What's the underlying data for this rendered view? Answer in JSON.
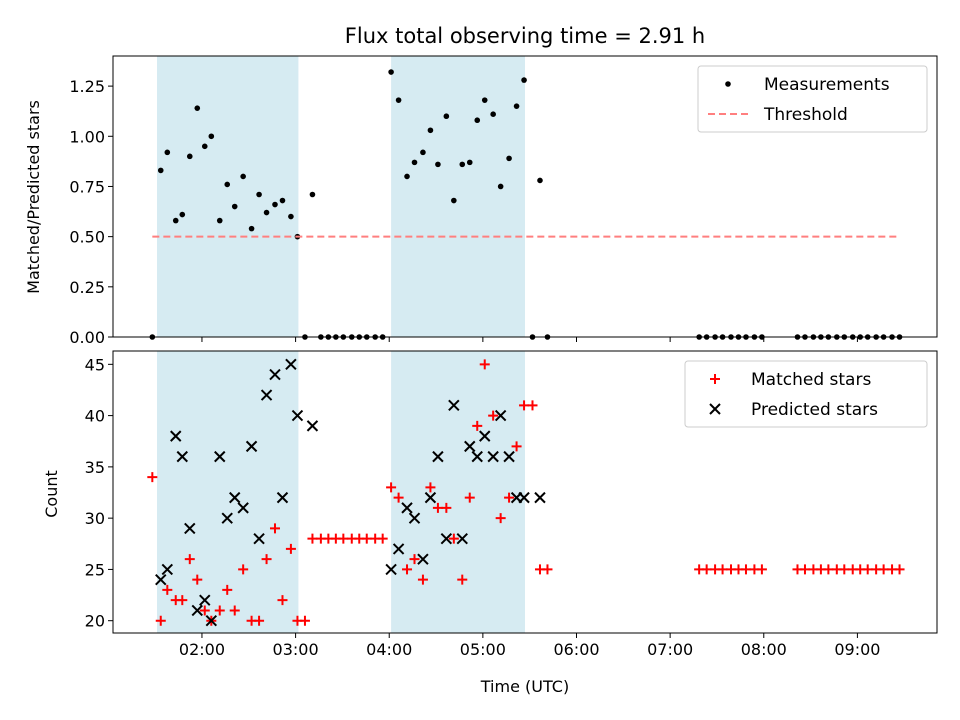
{
  "colors": {
    "shade": "#add8e6",
    "measurement": "#000000",
    "threshold": "#ff7f7f",
    "matched": "#ff0000",
    "predicted": "#000000"
  },
  "chart_data": [
    {
      "type": "scatter",
      "title": "Flux total observing time = 2.91 h",
      "xlabel": "",
      "ylabel": "Matched/Predicted stars",
      "x_ticks": [
        "02:00",
        "03:00",
        "04:00",
        "05:00",
        "06:00",
        "07:00",
        "08:00",
        "09:00"
      ],
      "x_tick_values": [
        2,
        3,
        4,
        5,
        6,
        7,
        8,
        9
      ],
      "xlim": [
        1.05,
        9.85
      ],
      "ylim": [
        0,
        1.4
      ],
      "y_ticks": [
        0.0,
        0.25,
        0.5,
        0.75,
        1.0,
        1.25
      ],
      "y_tick_labels": [
        "0.00",
        "0.25",
        "0.50",
        "0.75",
        "1.00",
        "1.25"
      ],
      "shaded_intervals": [
        [
          1.52,
          3.03
        ],
        [
          4.02,
          5.45
        ]
      ],
      "legend_position": "upper right",
      "series": [
        {
          "name": "Measurements",
          "marker": "dot",
          "x": [
            1.47,
            1.56,
            1.63,
            1.72,
            1.79,
            1.87,
            1.95,
            2.03,
            2.1,
            2.19,
            2.27,
            2.35,
            2.44,
            2.53,
            2.61,
            2.69,
            2.78,
            2.86,
            2.95,
            3.02,
            3.1,
            3.18,
            3.27,
            3.35,
            3.43,
            3.51,
            3.6,
            3.68,
            3.76,
            3.85,
            3.93,
            4.02,
            4.1,
            4.19,
            4.27,
            4.36,
            4.44,
            4.52,
            4.61,
            4.69,
            4.78,
            4.86,
            4.94,
            5.02,
            5.11,
            5.19,
            5.28,
            5.36,
            5.44,
            5.53,
            5.61,
            5.69,
            7.31,
            7.39,
            7.48,
            7.56,
            7.65,
            7.73,
            7.81,
            7.9,
            7.98,
            8.36,
            8.44,
            8.53,
            8.61,
            8.69,
            8.78,
            8.86,
            8.95,
            9.03,
            9.11,
            9.2,
            9.28,
            9.37,
            9.45
          ],
          "y": [
            0.0,
            0.83,
            0.92,
            0.58,
            0.61,
            0.9,
            1.14,
            0.95,
            1.0,
            0.58,
            0.76,
            0.65,
            0.8,
            0.54,
            0.71,
            0.62,
            0.66,
            0.68,
            0.6,
            0.5,
            0.0,
            0.71,
            0.0,
            0.0,
            0.0,
            0.0,
            0.0,
            0.0,
            0.0,
            0.0,
            0.0,
            1.32,
            1.18,
            0.8,
            0.87,
            0.92,
            1.03,
            0.86,
            1.1,
            0.68,
            0.86,
            0.87,
            1.08,
            1.18,
            1.11,
            0.75,
            0.89,
            1.15,
            1.28,
            0.0,
            0.78,
            0.0,
            0.0,
            0.0,
            0.0,
            0.0,
            0.0,
            0.0,
            0.0,
            0.0,
            0.0,
            0.0,
            0.0,
            0.0,
            0.0,
            0.0,
            0.0,
            0.0,
            0.0,
            0.0,
            0.0,
            0.0,
            0.0,
            0.0,
            0.0
          ]
        },
        {
          "name": "Threshold",
          "marker": "dashed-line",
          "x": [
            1.47,
            9.45
          ],
          "y": [
            0.5,
            0.5
          ]
        }
      ]
    },
    {
      "type": "scatter",
      "title": "",
      "xlabel": "Time (UTC)",
      "ylabel": "Count",
      "x_ticks": [
        "02:00",
        "03:00",
        "04:00",
        "05:00",
        "06:00",
        "07:00",
        "08:00",
        "09:00"
      ],
      "x_tick_values": [
        2,
        3,
        4,
        5,
        6,
        7,
        8,
        9
      ],
      "xlim": [
        1.05,
        9.85
      ],
      "ylim": [
        18.8,
        46.3
      ],
      "y_ticks": [
        20,
        25,
        30,
        35,
        40,
        45
      ],
      "y_tick_labels": [
        "20",
        "25",
        "30",
        "35",
        "40",
        "45"
      ],
      "shaded_intervals": [
        [
          1.52,
          3.03
        ],
        [
          4.02,
          5.45
        ]
      ],
      "legend_position": "upper right",
      "series": [
        {
          "name": "Matched stars",
          "marker": "plus",
          "x": [
            1.47,
            1.56,
            1.63,
            1.72,
            1.79,
            1.87,
            1.95,
            2.03,
            2.1,
            2.19,
            2.27,
            2.35,
            2.44,
            2.53,
            2.61,
            2.69,
            2.78,
            2.86,
            2.95,
            3.02,
            3.1,
            3.18,
            3.27,
            3.35,
            3.43,
            3.51,
            3.6,
            3.68,
            3.76,
            3.85,
            3.93,
            4.02,
            4.1,
            4.19,
            4.27,
            4.36,
            4.44,
            4.52,
            4.61,
            4.69,
            4.78,
            4.86,
            4.94,
            5.02,
            5.11,
            5.19,
            5.28,
            5.36,
            5.44,
            5.53,
            5.61,
            5.69,
            7.31,
            7.39,
            7.48,
            7.56,
            7.65,
            7.73,
            7.81,
            7.9,
            7.98,
            8.36,
            8.44,
            8.53,
            8.61,
            8.69,
            8.78,
            8.86,
            8.95,
            9.03,
            9.11,
            9.2,
            9.28,
            9.37,
            9.45
          ],
          "y": [
            34,
            20,
            23,
            22,
            22,
            26,
            24,
            21,
            20,
            21,
            23,
            21,
            25,
            20,
            20,
            26,
            29,
            22,
            27,
            20,
            20,
            28,
            28,
            28,
            28,
            28,
            28,
            28,
            28,
            28,
            28,
            33,
            32,
            25,
            26,
            24,
            33,
            31,
            31,
            28,
            24,
            32,
            39,
            45,
            40,
            30,
            32,
            37,
            41,
            41,
            25,
            25,
            25,
            25,
            25,
            25,
            25,
            25,
            25,
            25,
            25,
            25,
            25,
            25,
            25,
            25,
            25,
            25,
            25,
            25,
            25,
            25,
            25,
            25,
            25
          ]
        },
        {
          "name": "Predicted stars",
          "marker": "x",
          "x": [
            1.56,
            1.63,
            1.72,
            1.79,
            1.87,
            1.95,
            2.03,
            2.1,
            2.19,
            2.27,
            2.35,
            2.44,
            2.53,
            2.61,
            2.69,
            2.78,
            2.86,
            2.95,
            3.02,
            3.18,
            4.02,
            4.1,
            4.19,
            4.27,
            4.36,
            4.44,
            4.52,
            4.61,
            4.69,
            4.78,
            4.86,
            4.94,
            5.02,
            5.11,
            5.19,
            5.28,
            5.36,
            5.44,
            5.61
          ],
          "y": [
            24,
            25,
            38,
            36,
            29,
            21,
            22,
            20,
            36,
            30,
            32,
            31,
            37,
            28,
            42,
            44,
            32,
            45,
            40,
            39,
            25,
            27,
            31,
            30,
            26,
            32,
            36,
            28,
            41,
            28,
            37,
            36,
            38,
            36,
            40,
            36,
            32,
            32,
            32
          ]
        }
      ]
    }
  ]
}
